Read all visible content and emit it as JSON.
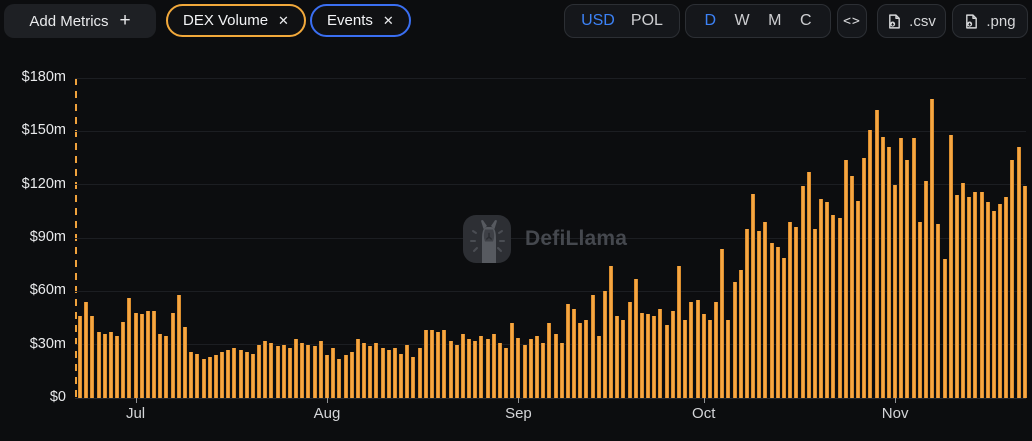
{
  "toolbar": {
    "add_metrics": {
      "label": "Add Metrics",
      "plus": "+"
    },
    "close_glyph": "✕",
    "metric_pills": [
      {
        "label": "DEX Volume",
        "accent": "#f2a93b"
      },
      {
        "label": "Events",
        "accent": "#3a6ff2"
      }
    ],
    "currency": {
      "options": [
        "USD",
        "POL"
      ],
      "selected": "USD"
    },
    "interval": {
      "options": [
        "D",
        "W",
        "M",
        "C"
      ],
      "selected": "D"
    },
    "embed_label": "<>",
    "export": [
      {
        "label": ".csv"
      },
      {
        "label": ".png"
      }
    ]
  },
  "watermark": {
    "text": "DefiLlama"
  },
  "colors": {
    "bar": "#f2a13c",
    "accent_blue": "#3c82f6",
    "pill_orange": "#f2a93b",
    "pill_blue": "#3a6ff2",
    "background": "#0c0d0f"
  },
  "chart_data": {
    "type": "bar",
    "title": "",
    "values_unit": "USD millions per day",
    "y_axis": {
      "max": 180,
      "ticks": [
        "$0",
        "$30m",
        "$60m",
        "$90m",
        "$120m",
        "$150m",
        "$180m"
      ]
    },
    "x_axis": {
      "ticks": [
        {
          "label": "Jul",
          "index": 9
        },
        {
          "label": "Aug",
          "index": 40
        },
        {
          "label": "Sep",
          "index": 71
        },
        {
          "label": "Oct",
          "index": 101
        },
        {
          "label": "Nov",
          "index": 132
        }
      ]
    },
    "event_marker": {
      "position": "chart-start",
      "style": "dashed-vertical-line",
      "color": "#f0a23c"
    },
    "grid": true,
    "legend": false,
    "series": [
      {
        "name": "DEX Volume",
        "color": "#f2a13c",
        "values": [
          46,
          54,
          46,
          37,
          36,
          37,
          35,
          43,
          56,
          48,
          47,
          49,
          49,
          36,
          35,
          48,
          58,
          40,
          26,
          25,
          22,
          23,
          24,
          26,
          27,
          28,
          27,
          26,
          25,
          30,
          32,
          31,
          29,
          30,
          28,
          33,
          31,
          30,
          29,
          32,
          24,
          28,
          22,
          24,
          26,
          33,
          31,
          29,
          31,
          28,
          27,
          28,
          25,
          30,
          23,
          28,
          38,
          38,
          37,
          38,
          32,
          30,
          36,
          33,
          32,
          35,
          33,
          36,
          31,
          28,
          42,
          34,
          30,
          33,
          35,
          31,
          42,
          36,
          31,
          53,
          50,
          42,
          44,
          58,
          35,
          60,
          74,
          46,
          44,
          54,
          67,
          48,
          47,
          46,
          50,
          41,
          49,
          74,
          44,
          54,
          55,
          47,
          44,
          54,
          84,
          44,
          65,
          72,
          95,
          115,
          94,
          99,
          87,
          85,
          79,
          99,
          96,
          119,
          127,
          95,
          112,
          110,
          103,
          101,
          134,
          125,
          111,
          135,
          151,
          162,
          147,
          141,
          120,
          146,
          134,
          146,
          99,
          122,
          168,
          98,
          78,
          148,
          114,
          121,
          113,
          116,
          116,
          110,
          105,
          109,
          113,
          134,
          141,
          119
        ]
      }
    ]
  }
}
